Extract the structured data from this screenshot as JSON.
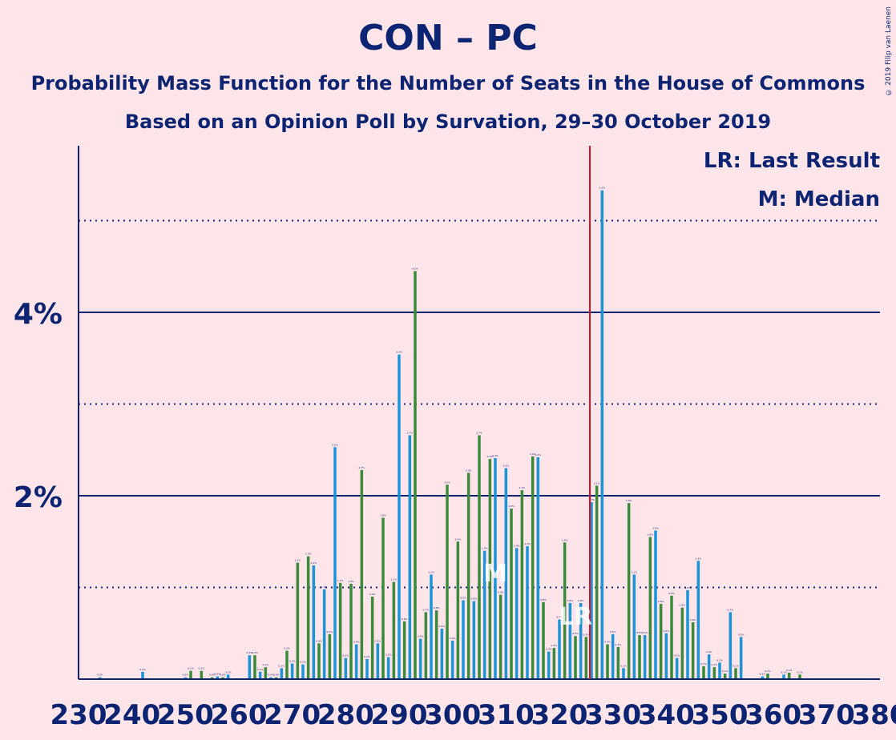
{
  "title": "CON – PC",
  "subtitle_1": "Probability Mass Function for the Number of Seats in the House of Commons",
  "subtitle_2": "Based on an Opinion Poll by Survation, 29–30 October 2019",
  "copyright": "© 2019 Filip van Laenen",
  "legend": {
    "last_result": "LR: Last Result",
    "median": "M: Median"
  },
  "colors": {
    "background": "#FDE5E9",
    "text": "#0D2472",
    "bar_blue": "#1B93D7",
    "bar_green": "#3A8A3A",
    "last_result_line": "#E01020"
  },
  "chart_data": {
    "type": "bar",
    "title": "CON – PC",
    "xlabel": "",
    "ylabel": "",
    "x_ticks": [
      230,
      240,
      250,
      260,
      270,
      280,
      290,
      300,
      310,
      320,
      330,
      340,
      350,
      360,
      370,
      380
    ],
    "y_ticks": [
      "2%",
      "4%"
    ],
    "xlim": [
      230,
      380
    ],
    "ylim": [
      0,
      5.8
    ],
    "last_result": 326,
    "median": 308,
    "median_label": "M",
    "last_result_label": "LR",
    "x": [
      230,
      231,
      232,
      233,
      234,
      235,
      236,
      237,
      238,
      239,
      240,
      241,
      242,
      243,
      244,
      245,
      246,
      247,
      248,
      249,
      250,
      251,
      252,
      253,
      254,
      255,
      256,
      257,
      258,
      259,
      260,
      261,
      262,
      263,
      264,
      265,
      266,
      267,
      268,
      269,
      270,
      271,
      272,
      273,
      274,
      275,
      276,
      277,
      278,
      279,
      280,
      281,
      282,
      283,
      284,
      285,
      286,
      287,
      288,
      289,
      290,
      291,
      292,
      293,
      294,
      295,
      296,
      297,
      298,
      299,
      300,
      301,
      302,
      303,
      304,
      305,
      306,
      307,
      308,
      309,
      310,
      311,
      312,
      313,
      314,
      315,
      316,
      317,
      318,
      319,
      320,
      321,
      322,
      323,
      324,
      325,
      326,
      327,
      328,
      329,
      330,
      331,
      332,
      333,
      334,
      335,
      336,
      337,
      338,
      339,
      340,
      341,
      342,
      343,
      344,
      345,
      346,
      347,
      348,
      349,
      350,
      351,
      352,
      353,
      354,
      355,
      356,
      357,
      358,
      359,
      360,
      361,
      362,
      363,
      364,
      365,
      366,
      367,
      368,
      369,
      370,
      371,
      372,
      373,
      374,
      375,
      376,
      377,
      378,
      379,
      380
    ],
    "values_pct": [
      0.0,
      0.0,
      0.0,
      0.0,
      0.02,
      0.0,
      0.0,
      0.0,
      0.0,
      0.0,
      0.0,
      0.0,
      0.08,
      0.0,
      0.0,
      0.0,
      0.0,
      0.0,
      0.0,
      0.0,
      0.02,
      0.09,
      0.0,
      0.09,
      0.0,
      0.02,
      0.03,
      0.02,
      0.05,
      0.0,
      0.0,
      0.0,
      0.26,
      0.26,
      0.08,
      0.13,
      0.02,
      0.02,
      0.12,
      0.31,
      0.17,
      1.27,
      0.16,
      1.34,
      1.24,
      0.39,
      0.98,
      0.49,
      2.53,
      1.05,
      0.23,
      1.04,
      0.38,
      2.28,
      0.22,
      0.9,
      0.39,
      1.76,
      0.24,
      1.06,
      3.54,
      0.63,
      2.66,
      4.45,
      0.44,
      0.73,
      1.14,
      0.75,
      0.55,
      2.12,
      0.42,
      1.5,
      0.86,
      2.25,
      0.85,
      2.66,
      1.4,
      2.4,
      2.41,
      0.92,
      2.3,
      1.86,
      1.43,
      2.06,
      1.45,
      2.43,
      2.42,
      0.84,
      0.3,
      0.34,
      0.65,
      1.49,
      0.83,
      0.47,
      0.83,
      0.46,
      1.93,
      2.11,
      5.33,
      0.38,
      0.49,
      0.35,
      0.12,
      1.92,
      1.14,
      0.48,
      0.48,
      1.55,
      1.62,
      0.82,
      0.5,
      0.91,
      0.23,
      0.78,
      0.97,
      0.62,
      1.29,
      0.14,
      0.27,
      0.13,
      0.18,
      0.06,
      0.73,
      0.12,
      0.46,
      0.0,
      0.0,
      0.0,
      0.03,
      0.06,
      0.0,
      0.0,
      0.05,
      0.07,
      0.0,
      0.05,
      0.0,
      0.0,
      0.0,
      0.0,
      0.0,
      0.0,
      0.0,
      0.0,
      0.0,
      0.0,
      0.0,
      0.0,
      0.0,
      0.0,
      0.0
    ]
  }
}
